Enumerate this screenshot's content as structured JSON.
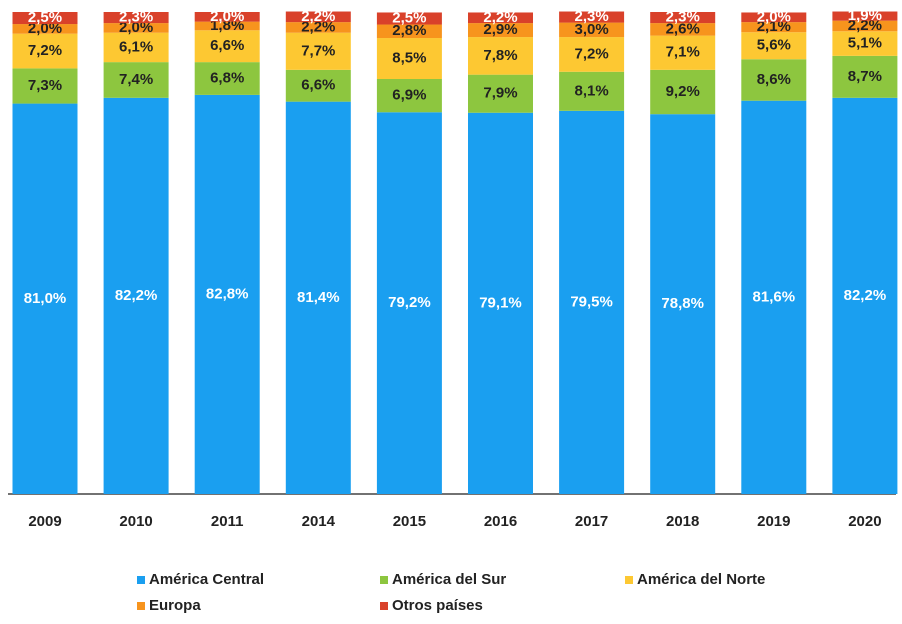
{
  "chart_data": {
    "type": "stacked_bar",
    "categories": [
      "2009",
      "2010",
      "2011",
      "2014",
      "2015",
      "2016",
      "2017",
      "2018",
      "2019",
      "2020"
    ],
    "ylim": [
      0,
      100
    ],
    "series": [
      {
        "name": "América Central",
        "color": "#1a9ff0",
        "values": [
          81.0,
          82.2,
          82.8,
          81.4,
          79.2,
          79.1,
          79.5,
          78.8,
          81.6,
          82.2
        ],
        "value_labels": [
          "81,0%",
          "82,2%",
          "82,8%",
          "81,4%",
          "79,2%",
          "79,1%",
          "79,5%",
          "78,8%",
          "81,6%",
          "82,2%"
        ]
      },
      {
        "name": "América del Sur",
        "color": "#8dc63f",
        "values": [
          7.3,
          7.4,
          6.8,
          6.6,
          6.9,
          7.9,
          8.1,
          9.2,
          8.6,
          8.7
        ],
        "value_labels": [
          "7,3%",
          "7,4%",
          "6,8%",
          "6,6%",
          "6,9%",
          "7,9%",
          "8,1%",
          "9,2%",
          "8,6%",
          "8,7%"
        ]
      },
      {
        "name": "América del Norte",
        "color": "#fdc832",
        "values": [
          7.2,
          6.1,
          6.6,
          7.7,
          8.5,
          7.8,
          7.2,
          7.1,
          5.6,
          5.1
        ],
        "value_labels": [
          "7,2%",
          "6,1%",
          "6,6%",
          "7,7%",
          "8,5%",
          "7,8%",
          "7,2%",
          "7,1%",
          "5,6%",
          "5,1%"
        ]
      },
      {
        "name": "Europa",
        "color": "#f7941d",
        "values": [
          2.0,
          2.0,
          1.8,
          2.2,
          2.8,
          2.9,
          3.0,
          2.6,
          2.1,
          2.2
        ],
        "value_labels": [
          "2,0%",
          "2,0%",
          "1,8%",
          "2,2%",
          "2,8%",
          "2,9%",
          "3,0%",
          "2,6%",
          "2,1%",
          "2,2%"
        ]
      },
      {
        "name": "Otros países",
        "color": "#d9412a",
        "values": [
          2.5,
          2.3,
          2.0,
          2.2,
          2.5,
          2.2,
          2.3,
          2.3,
          2.0,
          1.9
        ],
        "value_labels": [
          "2,5%",
          "2,3%",
          "2,0%",
          "2,2%",
          "2,5%",
          "2,2%",
          "2,3%",
          "2,3%",
          "2,0%",
          "1,9%"
        ]
      }
    ]
  }
}
